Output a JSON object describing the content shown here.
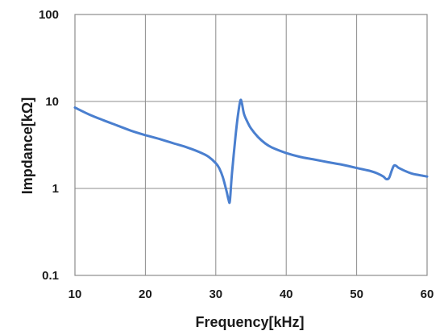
{
  "chart_data": {
    "type": "line",
    "xlabel": "Frequency[kHz]",
    "ylabel": "Impdance[kΩ]",
    "xlim": [
      10,
      60
    ],
    "ylim": [
      0.1,
      100
    ],
    "yscale": "log",
    "grid": true,
    "x_ticks": [
      10,
      20,
      30,
      40,
      50,
      60
    ],
    "x_tick_labels": [
      "10",
      "20",
      "30",
      "40",
      "50",
      "60"
    ],
    "y_ticks": [
      0.1,
      1,
      10,
      100
    ],
    "y_tick_labels": [
      "0.1",
      "1",
      "10",
      "100"
    ],
    "series": [
      {
        "color": "#4a7fcf",
        "x": [
          10,
          12,
          14,
          16,
          18,
          20,
          22,
          24,
          26,
          28,
          29,
          30,
          30.5,
          31,
          31.5,
          31.8,
          32.0,
          32.3,
          32.8,
          33.2,
          33.5,
          33.7,
          34,
          34.5,
          35,
          36,
          37,
          38,
          40,
          42,
          44,
          46,
          48,
          50,
          52,
          53,
          53.8,
          54.2,
          54.6,
          55,
          55.3,
          55.6,
          56,
          57,
          58,
          59,
          60
        ],
        "y": [
          8.5,
          7.1,
          6.1,
          5.3,
          4.6,
          4.1,
          3.7,
          3.3,
          2.95,
          2.55,
          2.3,
          1.95,
          1.7,
          1.35,
          0.95,
          0.75,
          0.72,
          1.5,
          4.0,
          7.5,
          10.3,
          9.6,
          7.2,
          5.8,
          4.9,
          3.9,
          3.3,
          2.95,
          2.55,
          2.3,
          2.15,
          2.0,
          1.87,
          1.72,
          1.58,
          1.48,
          1.37,
          1.28,
          1.32,
          1.62,
          1.83,
          1.82,
          1.72,
          1.57,
          1.47,
          1.42,
          1.37
        ]
      }
    ]
  }
}
